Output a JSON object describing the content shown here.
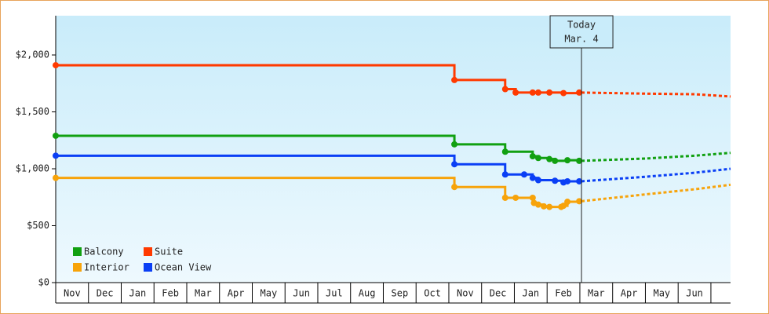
{
  "chart_data": {
    "type": "line",
    "step": true,
    "categories": [
      "Nov",
      "Dec",
      "Jan",
      "Feb",
      "Mar",
      "Apr",
      "May",
      "Jun",
      "Jul",
      "Aug",
      "Sep",
      "Oct",
      "Nov",
      "Dec",
      "Jan",
      "Feb",
      "Mar",
      "Apr",
      "May",
      "Jun",
      null
    ],
    "xlim": [
      0,
      20.6
    ],
    "ylim": [
      0,
      2345
    ],
    "yticks": [
      {
        "value": 0,
        "label": "$0"
      },
      {
        "value": 500,
        "label": "$500"
      },
      {
        "value": 1000,
        "label": "$1,000"
      },
      {
        "value": 1500,
        "label": "$1,500"
      },
      {
        "value": 2000,
        "label": "$2,000"
      }
    ],
    "today": {
      "x": 16.05,
      "label": [
        "Today",
        "Mar. 4"
      ]
    },
    "legend": "lower-left",
    "series": [
      {
        "name": "Balcony",
        "color": "#11a011",
        "x": [
          0,
          12.17,
          13.72,
          14.56,
          14.73,
          15.07,
          15.24,
          15.62,
          15.98
        ],
        "values": [
          1290,
          1215,
          1150,
          1110,
          1095,
          1085,
          1070,
          1075,
          1070
        ],
        "forecast": {
          "x": [
            16.05,
            18,
            19.5,
            20.6
          ],
          "values": [
            1070,
            1090,
            1115,
            1140
          ]
        }
      },
      {
        "name": "Suite",
        "color": "#ff3a00",
        "x": [
          0,
          12.17,
          13.72,
          14.04,
          14.56,
          14.73,
          15.07,
          15.5,
          15.98
        ],
        "values": [
          1910,
          1780,
          1700,
          1670,
          1670,
          1670,
          1670,
          1665,
          1670
        ],
        "forecast": {
          "x": [
            16.05,
            18,
            19.5,
            20.6
          ],
          "values": [
            1670,
            1660,
            1655,
            1635
          ]
        }
      },
      {
        "name": "Interior",
        "color": "#f7a30a",
        "x": [
          0,
          12.17,
          13.72,
          14.04,
          14.56,
          14.6,
          14.73,
          14.9,
          15.07,
          15.43,
          15.5,
          15.62,
          15.98
        ],
        "values": [
          920,
          840,
          745,
          745,
          745,
          700,
          685,
          670,
          665,
          665,
          675,
          710,
          715
        ],
        "forecast": {
          "x": [
            16.05,
            18,
            19.5,
            20.6
          ],
          "values": [
            715,
            775,
            820,
            860
          ]
        }
      },
      {
        "name": "Ocean View",
        "color": "#0a3ff5",
        "x": [
          0,
          12.17,
          13.72,
          14.3,
          14.56,
          14.73,
          15.24,
          15.5,
          15.62,
          15.98
        ],
        "values": [
          1115,
          1040,
          950,
          950,
          920,
          900,
          895,
          880,
          890,
          890
        ],
        "forecast": {
          "x": [
            16.05,
            18,
            19.5,
            20.6
          ],
          "values": [
            890,
            930,
            965,
            1000
          ]
        }
      }
    ]
  }
}
